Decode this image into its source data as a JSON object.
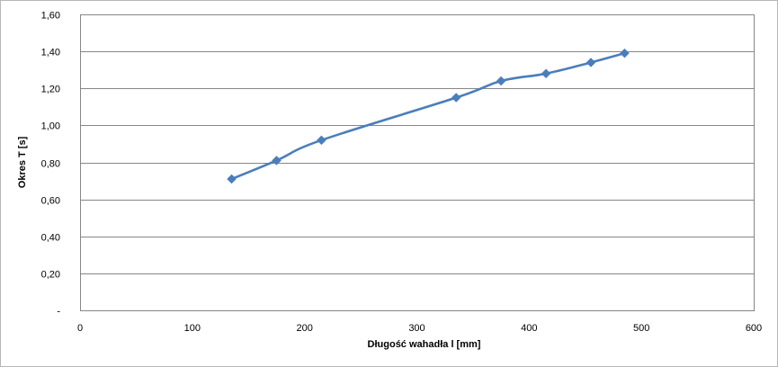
{
  "chart_data": {
    "type": "line",
    "xlabel": "Długość wahadła  l [mm]",
    "ylabel": "Okres T [s]",
    "xlim": [
      0,
      600
    ],
    "ylim": [
      0,
      1.6
    ],
    "x_ticks": [
      "0",
      "100",
      "200",
      "300",
      "400",
      "500",
      "600"
    ],
    "y_ticks": [
      "-",
      "0,20",
      "0,40",
      "0,60",
      "0,80",
      "1,00",
      "1,20",
      "1,40",
      "1,60"
    ],
    "grid": "horizontal",
    "legend": "none",
    "series": [
      {
        "color": "#4a7ebb",
        "marker": "diamond",
        "smooth": true,
        "x": [
          135,
          175,
          215,
          335,
          375,
          415,
          455,
          485
        ],
        "y": [
          0.71,
          0.81,
          0.92,
          1.15,
          1.24,
          1.28,
          1.34,
          1.39
        ]
      }
    ]
  }
}
